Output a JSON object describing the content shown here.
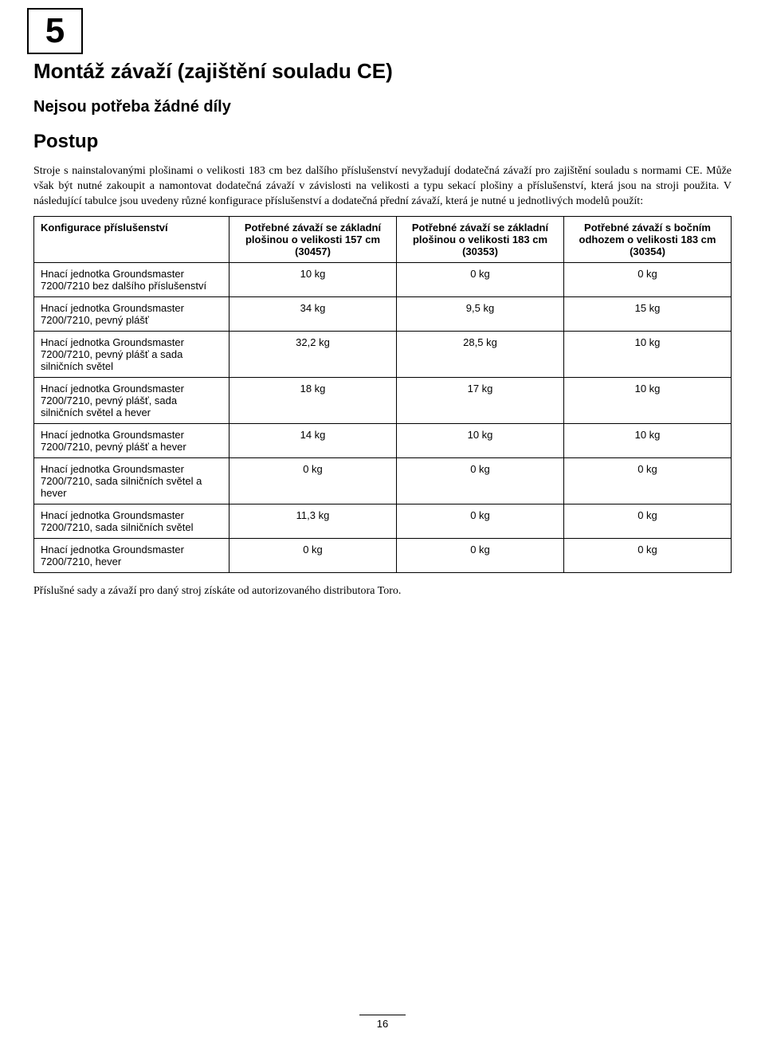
{
  "step_number": "5",
  "title": "Montáž závaží (zajištění souladu CE)",
  "no_parts": "Nejsou potřeba žádné díly",
  "postup_heading": "Postup",
  "para1": "Stroje s nainstalovanými plošinami o velikosti 183 cm bez dalšího příslušenství nevyžadují dodatečná závaží pro zajištění souladu s normami CE. Může však být nutné zakoupit a namontovat dodatečná závaží v závislosti na velikosti a typu sekací plošiny a příslušenství, která jsou na stroji použita. V následující tabulce jsou uvedeny různé konfigurace příslušenství a dodatečná přední závaží, která je nutné u jednotlivých modelů použít:",
  "table": {
    "headers": [
      "Konfigurace příslušenství",
      "Potřebné závaží se základní plošinou o velikosti 157 cm (30457)",
      "Potřebné závaží se základní plošinou o velikosti 183 cm (30353)",
      "Potřebné závaží s bočním odhozem o velikosti 183 cm (30354)"
    ],
    "rows": [
      [
        "Hnací jednotka Groundsmaster 7200/7210 bez dalšího příslušenství",
        "10 kg",
        "0 kg",
        "0 kg"
      ],
      [
        "Hnací jednotka Groundsmaster 7200/7210, pevný plášť",
        "34 kg",
        "9,5 kg",
        "15 kg"
      ],
      [
        "Hnací jednotka Groundsmaster 7200/7210, pevný plášť a sada silničních světel",
        "32,2 kg",
        "28,5 kg",
        "10 kg"
      ],
      [
        "Hnací jednotka Groundsmaster 7200/7210, pevný plášť, sada silničních světel a hever",
        "18 kg",
        "17 kg",
        "10 kg"
      ],
      [
        "Hnací jednotka Groundsmaster 7200/7210, pevný plášť a hever",
        "14 kg",
        "10 kg",
        "10 kg"
      ],
      [
        "Hnací jednotka Groundsmaster 7200/7210, sada silničních světel a hever",
        "0 kg",
        "0 kg",
        "0 kg"
      ],
      [
        "Hnací jednotka Groundsmaster 7200/7210, sada silničních světel",
        "11,3 kg",
        "0 kg",
        "0 kg"
      ],
      [
        "Hnací jednotka Groundsmaster 7200/7210, hever",
        "0 kg",
        "0 kg",
        "0 kg"
      ]
    ]
  },
  "para2": "Příslušné sady a závaží pro daný stroj získáte od autorizovaného distributora Toro.",
  "page_number": "16"
}
